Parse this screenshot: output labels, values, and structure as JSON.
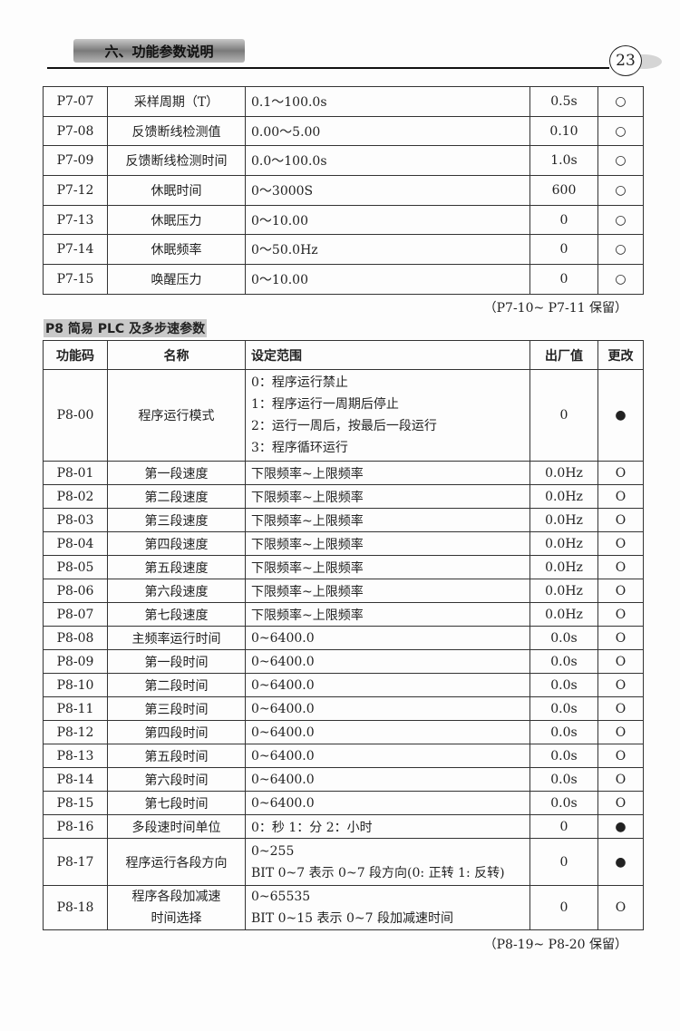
{
  "header": {
    "chapter": "六、功能参数说明",
    "page_number": "23"
  },
  "p7_rows": [
    [
      "P7-07",
      "采样周期（T）",
      "0.1～100.0s",
      "0.5s",
      "○"
    ],
    [
      "P7-08",
      "反馈断线检测值",
      "0.00～5.00",
      "0.10",
      "○"
    ],
    [
      "P7-09",
      "反馈断线检测时间",
      "0.0～100.0s",
      "1.0s",
      "○"
    ],
    [
      "P7-12",
      "休眠时间",
      "0～3000S",
      "600",
      "○"
    ],
    [
      "P7-13",
      "休眠压力",
      "0～10.00",
      "0",
      "○"
    ],
    [
      "P7-14",
      "休眠频率",
      "0～50.0Hz",
      "0",
      "○"
    ],
    [
      "P7-15",
      "唤醒压力",
      "0～10.00",
      "0",
      "○"
    ]
  ],
  "p7_note": "（P7-10~ P7-11 保留）",
  "p8_title": "P8 简易 PLC 及多步速参数",
  "p8_headers": [
    "功能码",
    "名称",
    "设定范围",
    "出厂值",
    "更改"
  ],
  "p8_00": {
    "code": "P8-00",
    "name": "程序运行模式",
    "range": [
      "0：程序运行禁止",
      "1：程序运行一周期后停止",
      "2：运行一周后，按最后一段运行",
      "3：程序循环运行"
    ],
    "default": "0",
    "change": "●"
  },
  "p8_rows": [
    [
      "P8-01",
      "第一段速度",
      "下限频率~上限频率",
      "0.0Hz",
      "O"
    ],
    [
      "P8-02",
      "第二段速度",
      "下限频率~上限频率",
      "0.0Hz",
      "O"
    ],
    [
      "P8-03",
      "第三段速度",
      "下限频率~上限频率",
      "0.0Hz",
      "O"
    ],
    [
      "P8-04",
      "第四段速度",
      "下限频率~上限频率",
      "0.0Hz",
      "O"
    ],
    [
      "P8-05",
      "第五段速度",
      "下限频率~上限频率",
      "0.0Hz",
      "O"
    ],
    [
      "P8-06",
      "第六段速度",
      "下限频率~上限频率",
      "0.0Hz",
      "O"
    ],
    [
      "P8-07",
      "第七段速度",
      "下限频率~上限频率",
      "0.0Hz",
      "O"
    ],
    [
      "P8-08",
      "主频率运行时间",
      "0~6400.0",
      "0.0s",
      "O"
    ],
    [
      "P8-09",
      "第一段时间",
      "0~6400.0",
      "0.0s",
      "O"
    ],
    [
      "P8-10",
      "第二段时间",
      "0~6400.0",
      "0.0s",
      "O"
    ],
    [
      "P8-11",
      "第三段时间",
      "0~6400.0",
      "0.0s",
      "O"
    ],
    [
      "P8-12",
      "第四段时间",
      "0~6400.0",
      "0.0s",
      "O"
    ],
    [
      "P8-13",
      "第五段时间",
      "0~6400.0",
      "0.0s",
      "O"
    ],
    [
      "P8-14",
      "第六段时间",
      "0~6400.0",
      "0.0s",
      "O"
    ],
    [
      "P8-15",
      "第七段时间",
      "0~6400.0",
      "0.0s",
      "O"
    ],
    [
      "P8-16",
      "多段速时间单位",
      "0：秒 1：分 2：小时",
      "0",
      "●"
    ]
  ],
  "p8_17": {
    "code": "P8-17",
    "name": "程序运行各段方向",
    "range": [
      "0~255",
      "BIT 0~7 表示 0~7 段方向(0: 正转 1: 反转)"
    ],
    "default": "0",
    "change": "●"
  },
  "p8_18": {
    "code": "P8-18",
    "name": [
      "程序各段加减速",
      "时间选择"
    ],
    "range": [
      "0~65535",
      "BIT 0~15 表示 0~7 段加减速时间"
    ],
    "default": "0",
    "change": "O"
  },
  "p8_note": "（P8-19~ P8-20 保留）"
}
